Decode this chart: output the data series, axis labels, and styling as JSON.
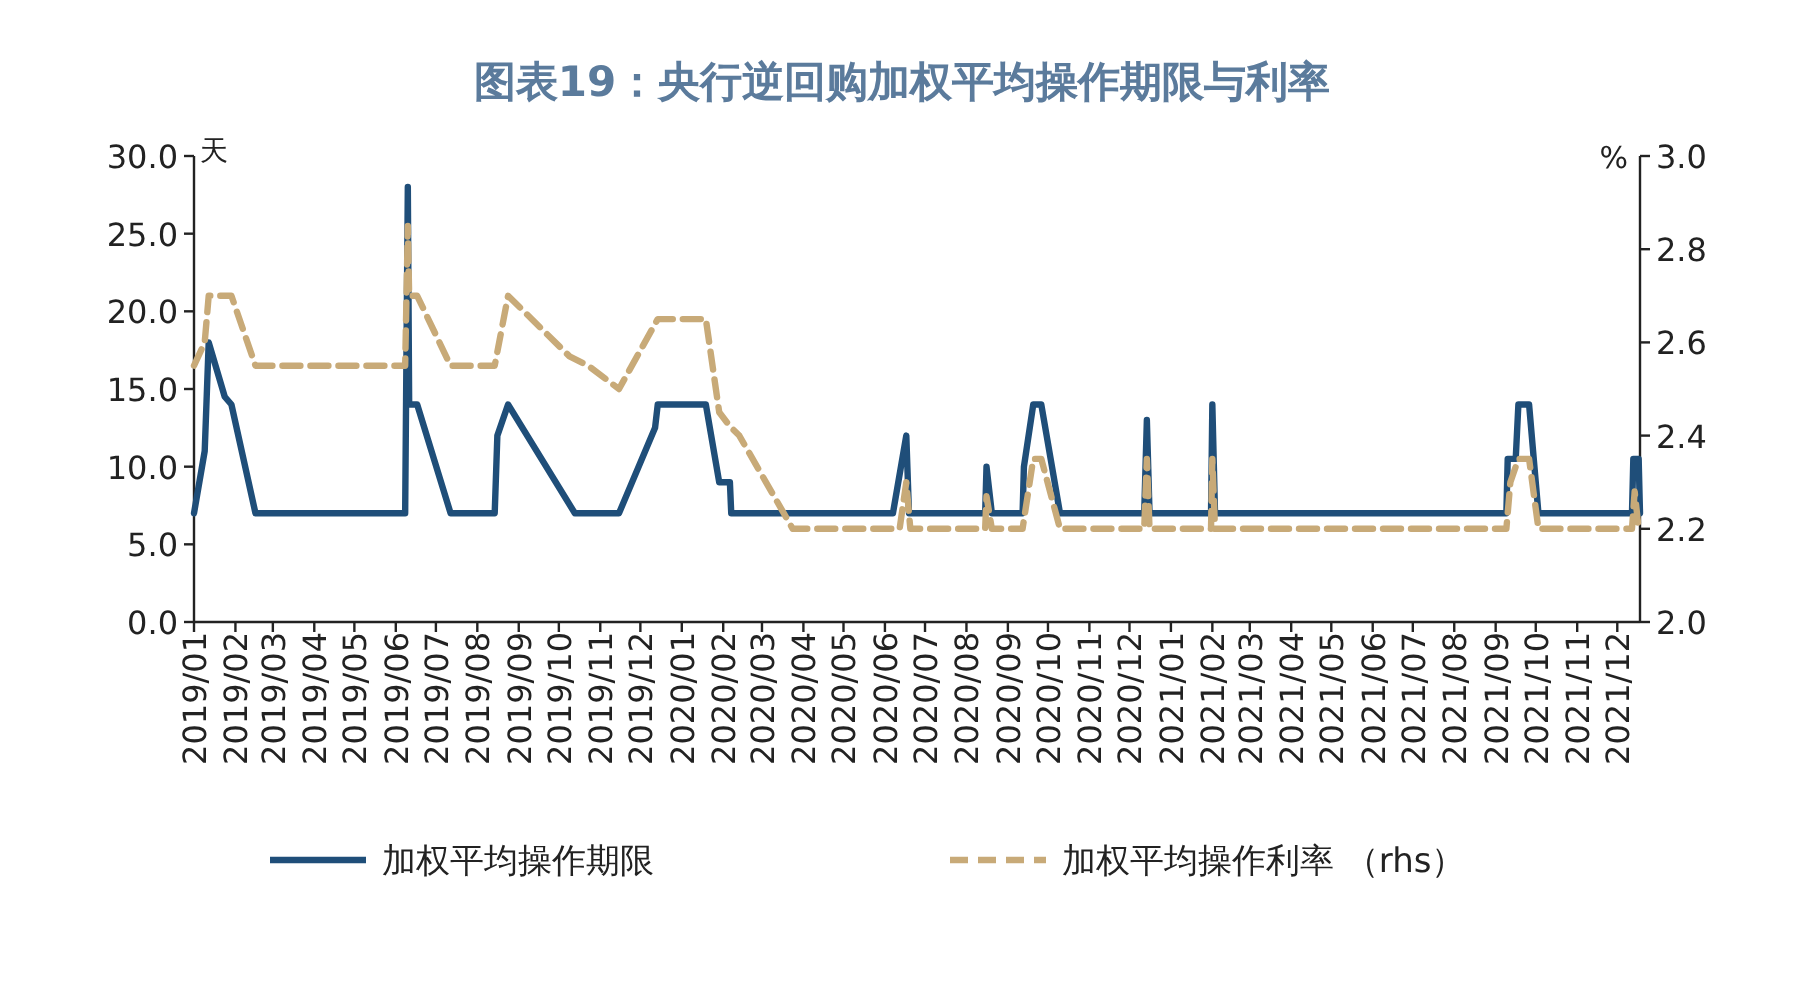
{
  "chart_data": {
    "type": "line",
    "title": "图表19：央行逆回购加权平均操作期限与利率",
    "ylabel": "天",
    "y2label": "%",
    "legend": "bottom",
    "grid": false,
    "xlim": [
      "2019-01-01",
      "2021-12-18"
    ],
    "xticks": [
      {
        "value": "2019-01-01",
        "label": "2019/01"
      },
      {
        "value": "2019-02-01",
        "label": "2019/02"
      },
      {
        "value": "2019-03-01",
        "label": "2019/03"
      },
      {
        "value": "2019-04-01",
        "label": "2019/04"
      },
      {
        "value": "2019-05-01",
        "label": "2019/05"
      },
      {
        "value": "2019-06-01",
        "label": "2019/06"
      },
      {
        "value": "2019-07-01",
        "label": "2019/07"
      },
      {
        "value": "2019-08-01",
        "label": "2019/08"
      },
      {
        "value": "2019-09-01",
        "label": "2019/09"
      },
      {
        "value": "2019-10-01",
        "label": "2019/10"
      },
      {
        "value": "2019-11-01",
        "label": "2019/11"
      },
      {
        "value": "2019-12-01",
        "label": "2019/12"
      },
      {
        "value": "2020-01-01",
        "label": "2020/01"
      },
      {
        "value": "2020-02-01",
        "label": "2020/02"
      },
      {
        "value": "2020-03-01",
        "label": "2020/03"
      },
      {
        "value": "2020-04-01",
        "label": "2020/04"
      },
      {
        "value": "2020-05-01",
        "label": "2020/05"
      },
      {
        "value": "2020-06-01",
        "label": "2020/06"
      },
      {
        "value": "2020-07-01",
        "label": "2020/07"
      },
      {
        "value": "2020-08-01",
        "label": "2020/08"
      },
      {
        "value": "2020-09-01",
        "label": "2020/09"
      },
      {
        "value": "2020-10-01",
        "label": "2020/10"
      },
      {
        "value": "2020-11-01",
        "label": "2020/11"
      },
      {
        "value": "2020-12-01",
        "label": "2020/12"
      },
      {
        "value": "2021-01-01",
        "label": "2021/01"
      },
      {
        "value": "2021-02-01",
        "label": "2021/02"
      },
      {
        "value": "2021-03-01",
        "label": "2021/03"
      },
      {
        "value": "2021-04-01",
        "label": "2021/04"
      },
      {
        "value": "2021-05-01",
        "label": "2021/05"
      },
      {
        "value": "2021-06-01",
        "label": "2021/06"
      },
      {
        "value": "2021-07-01",
        "label": "2021/07"
      },
      {
        "value": "2021-08-01",
        "label": "2021/08"
      },
      {
        "value": "2021-09-01",
        "label": "2021/09"
      },
      {
        "value": "2021-10-01",
        "label": "2021/10"
      },
      {
        "value": "2021-11-01",
        "label": "2021/11"
      },
      {
        "value": "2021-12-01",
        "label": "2021/12"
      }
    ],
    "ylim": [
      0,
      30
    ],
    "yticks": [
      {
        "value": 0,
        "label": "0.0"
      },
      {
        "value": 5,
        "label": "5.0"
      },
      {
        "value": 10,
        "label": "10.0"
      },
      {
        "value": 15,
        "label": "15.0"
      },
      {
        "value": 20,
        "label": "20.0"
      },
      {
        "value": 25,
        "label": "25.0"
      },
      {
        "value": 30,
        "label": "30.0"
      }
    ],
    "y2lim": [
      2,
      3
    ],
    "y2ticks": [
      {
        "value": 2,
        "label": "2.0"
      },
      2.2,
      2.4,
      2.6,
      2.8,
      {
        "value": 3,
        "label": "3.0"
      }
    ],
    "series": [
      {
        "name": "加权平均操作期限",
        "color": "#1f4e79",
        "line_style": "solid",
        "x": [
          "2019-01-01",
          "2019-01-09",
          "2019-01-12",
          "2019-01-24",
          "2019-01-29",
          "2019-02-16",
          "2019-06-08",
          "2019-06-10",
          "2019-06-11",
          "2019-06-17",
          "2019-07-12",
          "2019-08-14",
          "2019-08-16",
          "2019-08-24",
          "2019-10-13",
          "2019-11-15",
          "2019-12-12",
          "2019-12-14",
          "2020-01-19",
          "2020-01-29",
          "2020-02-06",
          "2020-02-07",
          "2020-06-07",
          "2020-06-17",
          "2020-06-19",
          "2020-08-15",
          "2020-08-16",
          "2020-08-20",
          "2020-09-12",
          "2020-09-13",
          "2020-09-20",
          "2020-09-26",
          "2020-10-10",
          "2020-12-12",
          "2020-12-14",
          "2020-12-16",
          "2021-01-31",
          "2021-02-01",
          "2021-02-03",
          "2021-09-09",
          "2021-09-10",
          "2021-09-16",
          "2021-09-18",
          "2021-09-26",
          "2021-10-03",
          "2021-12-12",
          "2021-12-13",
          "2021-12-17",
          "2021-12-18"
        ],
        "values": [
          7,
          11,
          18,
          14.5,
          14,
          7,
          7,
          28,
          14,
          14,
          7,
          7,
          12,
          14,
          7,
          7,
          12.5,
          14,
          14,
          9,
          9,
          7,
          7,
          12,
          7,
          7,
          10,
          7,
          7,
          10,
          14,
          14,
          7,
          7,
          13,
          7,
          7,
          14,
          7,
          7,
          10.5,
          10.5,
          14,
          14,
          7,
          7,
          10.5,
          10.5,
          7
        ]
      },
      {
        "name": "加权平均操作利率 （rhs）",
        "color": "#c8aa78",
        "line_style": "dashed",
        "axis": "y2",
        "x": [
          "2019-01-01",
          "2019-01-09",
          "2019-01-12",
          "2019-01-29",
          "2019-02-16",
          "2019-06-08",
          "2019-06-10",
          "2019-06-11",
          "2019-06-17",
          "2019-07-12",
          "2019-08-14",
          "2019-08-24",
          "2019-10-09",
          "2019-10-23",
          "2019-11-15",
          "2019-12-14",
          "2020-01-19",
          "2020-01-29",
          "2020-02-06",
          "2020-02-13",
          "2020-03-24",
          "2020-06-12",
          "2020-06-17",
          "2020-06-20",
          "2020-08-15",
          "2020-08-16",
          "2020-08-20",
          "2020-09-12",
          "2020-09-20",
          "2020-09-26",
          "2020-10-10",
          "2020-12-12",
          "2020-12-14",
          "2020-12-16",
          "2021-01-31",
          "2021-02-01",
          "2021-02-03",
          "2021-09-09",
          "2021-09-12",
          "2021-09-18",
          "2021-09-26",
          "2021-10-03",
          "2021-12-12",
          "2021-12-14",
          "2021-12-17",
          "2021-12-18"
        ],
        "values": [
          2.55,
          2.6,
          2.7,
          2.7,
          2.55,
          2.55,
          2.85,
          2.7,
          2.7,
          2.55,
          2.55,
          2.7,
          2.57,
          2.55,
          2.5,
          2.65,
          2.65,
          2.45,
          2.42,
          2.4,
          2.2,
          2.2,
          2.3,
          2.2,
          2.2,
          2.27,
          2.2,
          2.2,
          2.35,
          2.35,
          2.2,
          2.2,
          2.35,
          2.2,
          2.2,
          2.35,
          2.2,
          2.2,
          2.3,
          2.35,
          2.35,
          2.2,
          2.2,
          2.28,
          2.2,
          2.2
        ]
      }
    ]
  }
}
